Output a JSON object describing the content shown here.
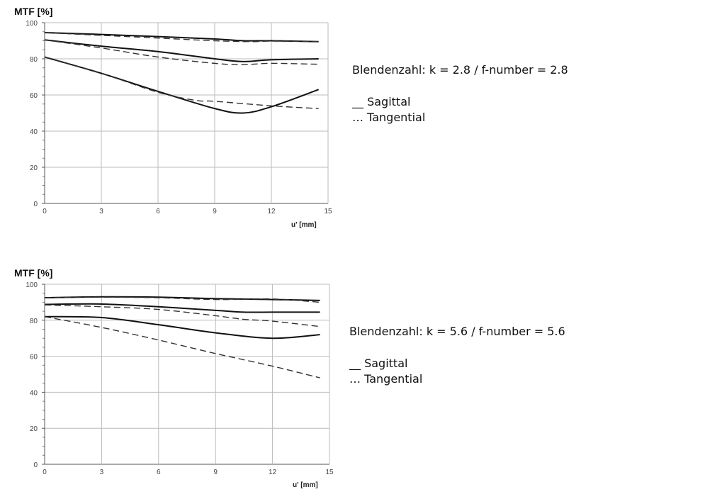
{
  "chart_data": [
    {
      "type": "line",
      "ylabel": "MTF [%]",
      "xlabel": "u' [mm]",
      "xlim": [
        0,
        15
      ],
      "ylim": [
        0,
        100
      ],
      "xticks": [
        "0",
        "3",
        "6",
        "9",
        "12",
        "15"
      ],
      "yticks": [
        "0",
        "20",
        "40",
        "60",
        "80",
        "100"
      ],
      "grid": true,
      "annotation": "Blendenzahl: k = 2.8 / f-number = 2.8",
      "legend": [
        "__ Sagittal",
        "… Tangential"
      ],
      "series": [
        {
          "style": "solid",
          "x": [
            0,
            3,
            6,
            9,
            10.5,
            12,
            14.5
          ],
          "y": [
            94.5,
            93.5,
            92.3,
            91,
            90,
            90,
            89.5
          ]
        },
        {
          "style": "dashed",
          "x": [
            0,
            3,
            6,
            9,
            11,
            12,
            14.5
          ],
          "y": [
            94.5,
            93,
            91.5,
            90,
            89.5,
            89.8,
            89.5
          ]
        },
        {
          "style": "solid",
          "x": [
            0,
            3,
            6,
            9,
            10.5,
            12,
            14.5
          ],
          "y": [
            90.5,
            87,
            84,
            80,
            78.5,
            79.5,
            80
          ]
        },
        {
          "style": "dashed",
          "x": [
            0,
            3,
            6,
            9,
            10.5,
            12,
            14.5
          ],
          "y": [
            90.5,
            86,
            81,
            77.5,
            76.8,
            77.5,
            77
          ]
        },
        {
          "style": "solid",
          "x": [
            0,
            3,
            6,
            9,
            10.5,
            12,
            14.5
          ],
          "y": [
            81,
            72,
            62,
            52.5,
            50,
            53.5,
            63
          ]
        },
        {
          "style": "dashed",
          "x": [
            0,
            3,
            6,
            8,
            9,
            12,
            14.5
          ],
          "y": [
            81,
            72,
            61.5,
            57,
            56.5,
            54,
            52.5
          ]
        }
      ]
    },
    {
      "type": "line",
      "ylabel": "MTF [%]",
      "xlabel": "u' [mm]",
      "xlim": [
        0,
        15
      ],
      "ylim": [
        0,
        100
      ],
      "xticks": [
        "0",
        "3",
        "6",
        "9",
        "12",
        "15"
      ],
      "yticks": [
        "0",
        "20",
        "40",
        "60",
        "80",
        "100"
      ],
      "grid": true,
      "annotation": "Blendenzahl: k = 5.6 / f-number = 5.6",
      "legend": [
        "__ Sagittal",
        "… Tangential"
      ],
      "series": [
        {
          "style": "solid",
          "x": [
            0,
            3,
            6,
            9,
            12,
            14.5
          ],
          "y": [
            92.5,
            93,
            92.8,
            92,
            91.5,
            91
          ]
        },
        {
          "style": "dashed",
          "x": [
            0,
            3,
            6,
            9,
            12,
            14.5
          ],
          "y": [
            92.5,
            92.8,
            92.5,
            91.5,
            91.8,
            90
          ]
        },
        {
          "style": "solid",
          "x": [
            0,
            3,
            6,
            9,
            10.5,
            12,
            14.5
          ],
          "y": [
            88.8,
            89,
            87.5,
            85.5,
            84.5,
            84.5,
            84.5
          ]
        },
        {
          "style": "dashed",
          "x": [
            0,
            3,
            6,
            9,
            10.5,
            12,
            14.5
          ],
          "y": [
            88.5,
            87.5,
            86,
            82.5,
            80.5,
            79.5,
            76.5
          ]
        },
        {
          "style": "solid",
          "x": [
            0,
            3,
            6,
            9,
            12,
            14.5
          ],
          "y": [
            82,
            81.5,
            77.5,
            73,
            70,
            72
          ]
        },
        {
          "style": "dashed",
          "x": [
            0,
            3,
            6,
            9,
            12,
            14.5
          ],
          "y": [
            82,
            76,
            69,
            61.5,
            54.5,
            48
          ]
        }
      ]
    }
  ]
}
